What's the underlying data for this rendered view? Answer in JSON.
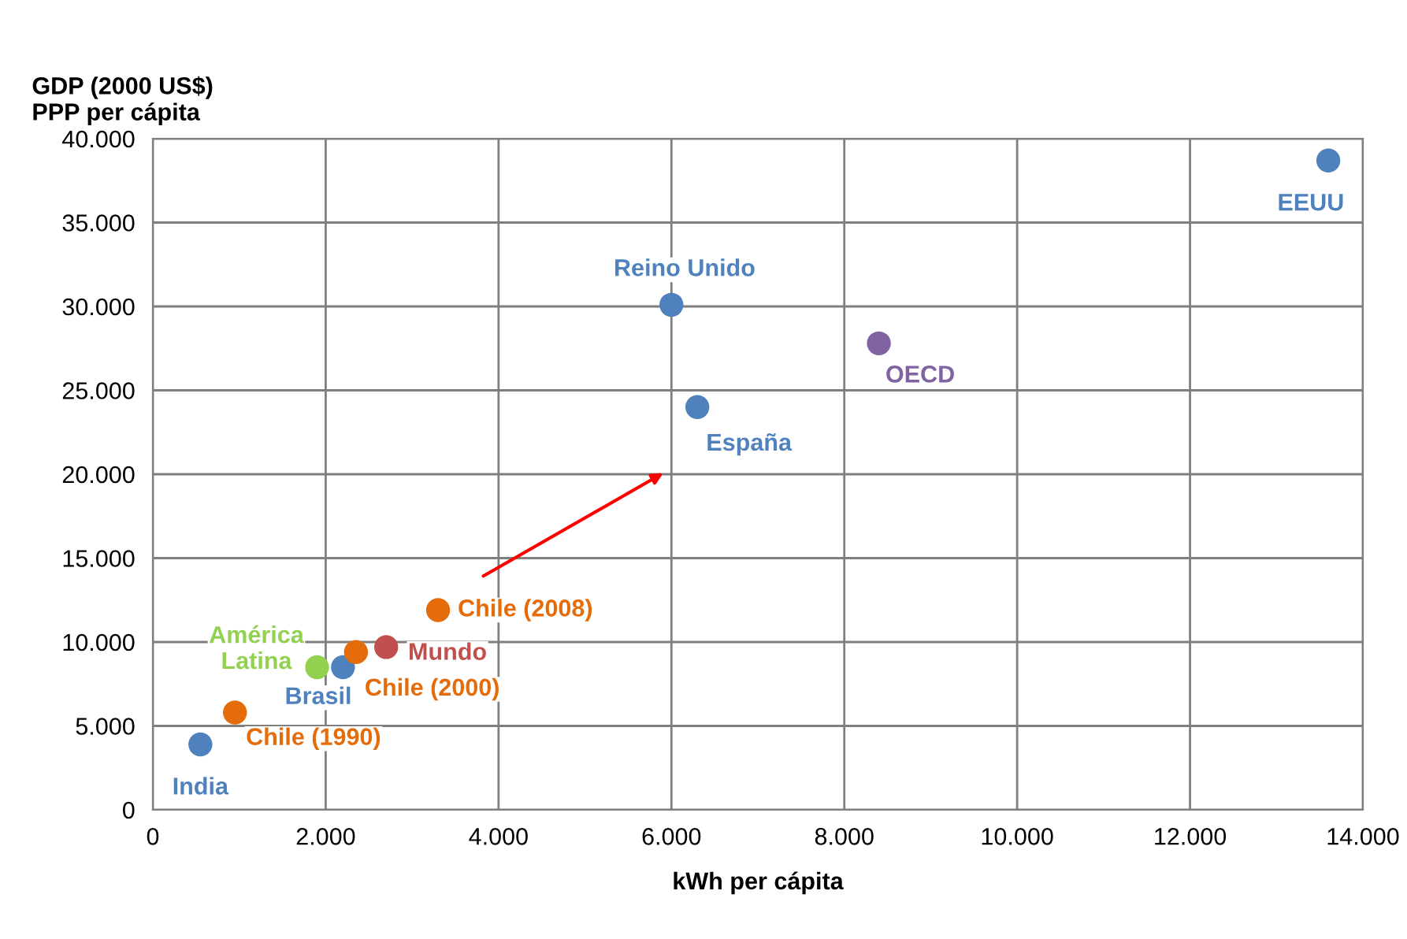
{
  "chart_data": {
    "type": "scatter",
    "xlabel": "kWh per cápita",
    "ylabel": "GDP (2000 US$)\nPPP per cápita",
    "series": [
      {
        "name": "India",
        "color": "#4f81bd",
        "x": [
          550
        ],
        "values": [
          3900
        ]
      },
      {
        "name": "Chile (1990)",
        "color": "#e46c0a",
        "x": [
          950
        ],
        "values": [
          5800
        ]
      },
      {
        "name": "América\nLatina",
        "color": "#92d050",
        "x": [
          1900
        ],
        "values": [
          8500
        ]
      },
      {
        "name": "Brasil",
        "color": "#4f81bd",
        "x": [
          2200
        ],
        "values": [
          8500
        ]
      },
      {
        "name": "Chile (2000)",
        "color": "#e46c0a",
        "x": [
          2350
        ],
        "values": [
          9400
        ]
      },
      {
        "name": "Mundo",
        "color": "#c0504d",
        "x": [
          2700
        ],
        "values": [
          9700
        ]
      },
      {
        "name": "Chile (2008)",
        "color": "#e46c0a",
        "x": [
          3300
        ],
        "values": [
          11900
        ]
      },
      {
        "name": "Reino Unido",
        "color": "#4f81bd",
        "x": [
          6000
        ],
        "values": [
          30100
        ]
      },
      {
        "name": "España",
        "color": "#4f81bd",
        "x": [
          6300
        ],
        "values": [
          24000
        ]
      },
      {
        "name": "OECD",
        "color": "#8064a2",
        "x": [
          8400
        ],
        "values": [
          27800
        ]
      },
      {
        "name": "EEUU",
        "color": "#4f81bd",
        "x": [
          13600
        ],
        "values": [
          38700
        ]
      }
    ],
    "xlim": [
      0,
      14000
    ],
    "xticks": [
      0,
      {
        "value": 2000,
        "label": "2.000"
      },
      {
        "value": 4000,
        "label": "4.000"
      },
      {
        "value": 6000,
        "label": "6.000"
      },
      {
        "value": 8000,
        "label": "8.000"
      },
      {
        "value": 10000,
        "label": "10.000"
      },
      {
        "value": 12000,
        "label": "12.000"
      },
      {
        "value": 14000,
        "label": "14.000"
      }
    ],
    "ylim": [
      0,
      40000
    ],
    "yticks": [
      0,
      {
        "value": 5000,
        "label": "5.000"
      },
      {
        "value": 10000,
        "label": "10.000"
      },
      {
        "value": 15000,
        "label": "15.000"
      },
      {
        "value": 20000,
        "label": "20.000"
      },
      {
        "value": 25000,
        "label": "25.000"
      },
      {
        "value": 30000,
        "label": "30.000"
      },
      {
        "value": 35000,
        "label": "35.000"
      },
      {
        "value": 40000,
        "label": "40.000"
      }
    ],
    "grid": true,
    "marker": "circle",
    "legend": false
  }
}
